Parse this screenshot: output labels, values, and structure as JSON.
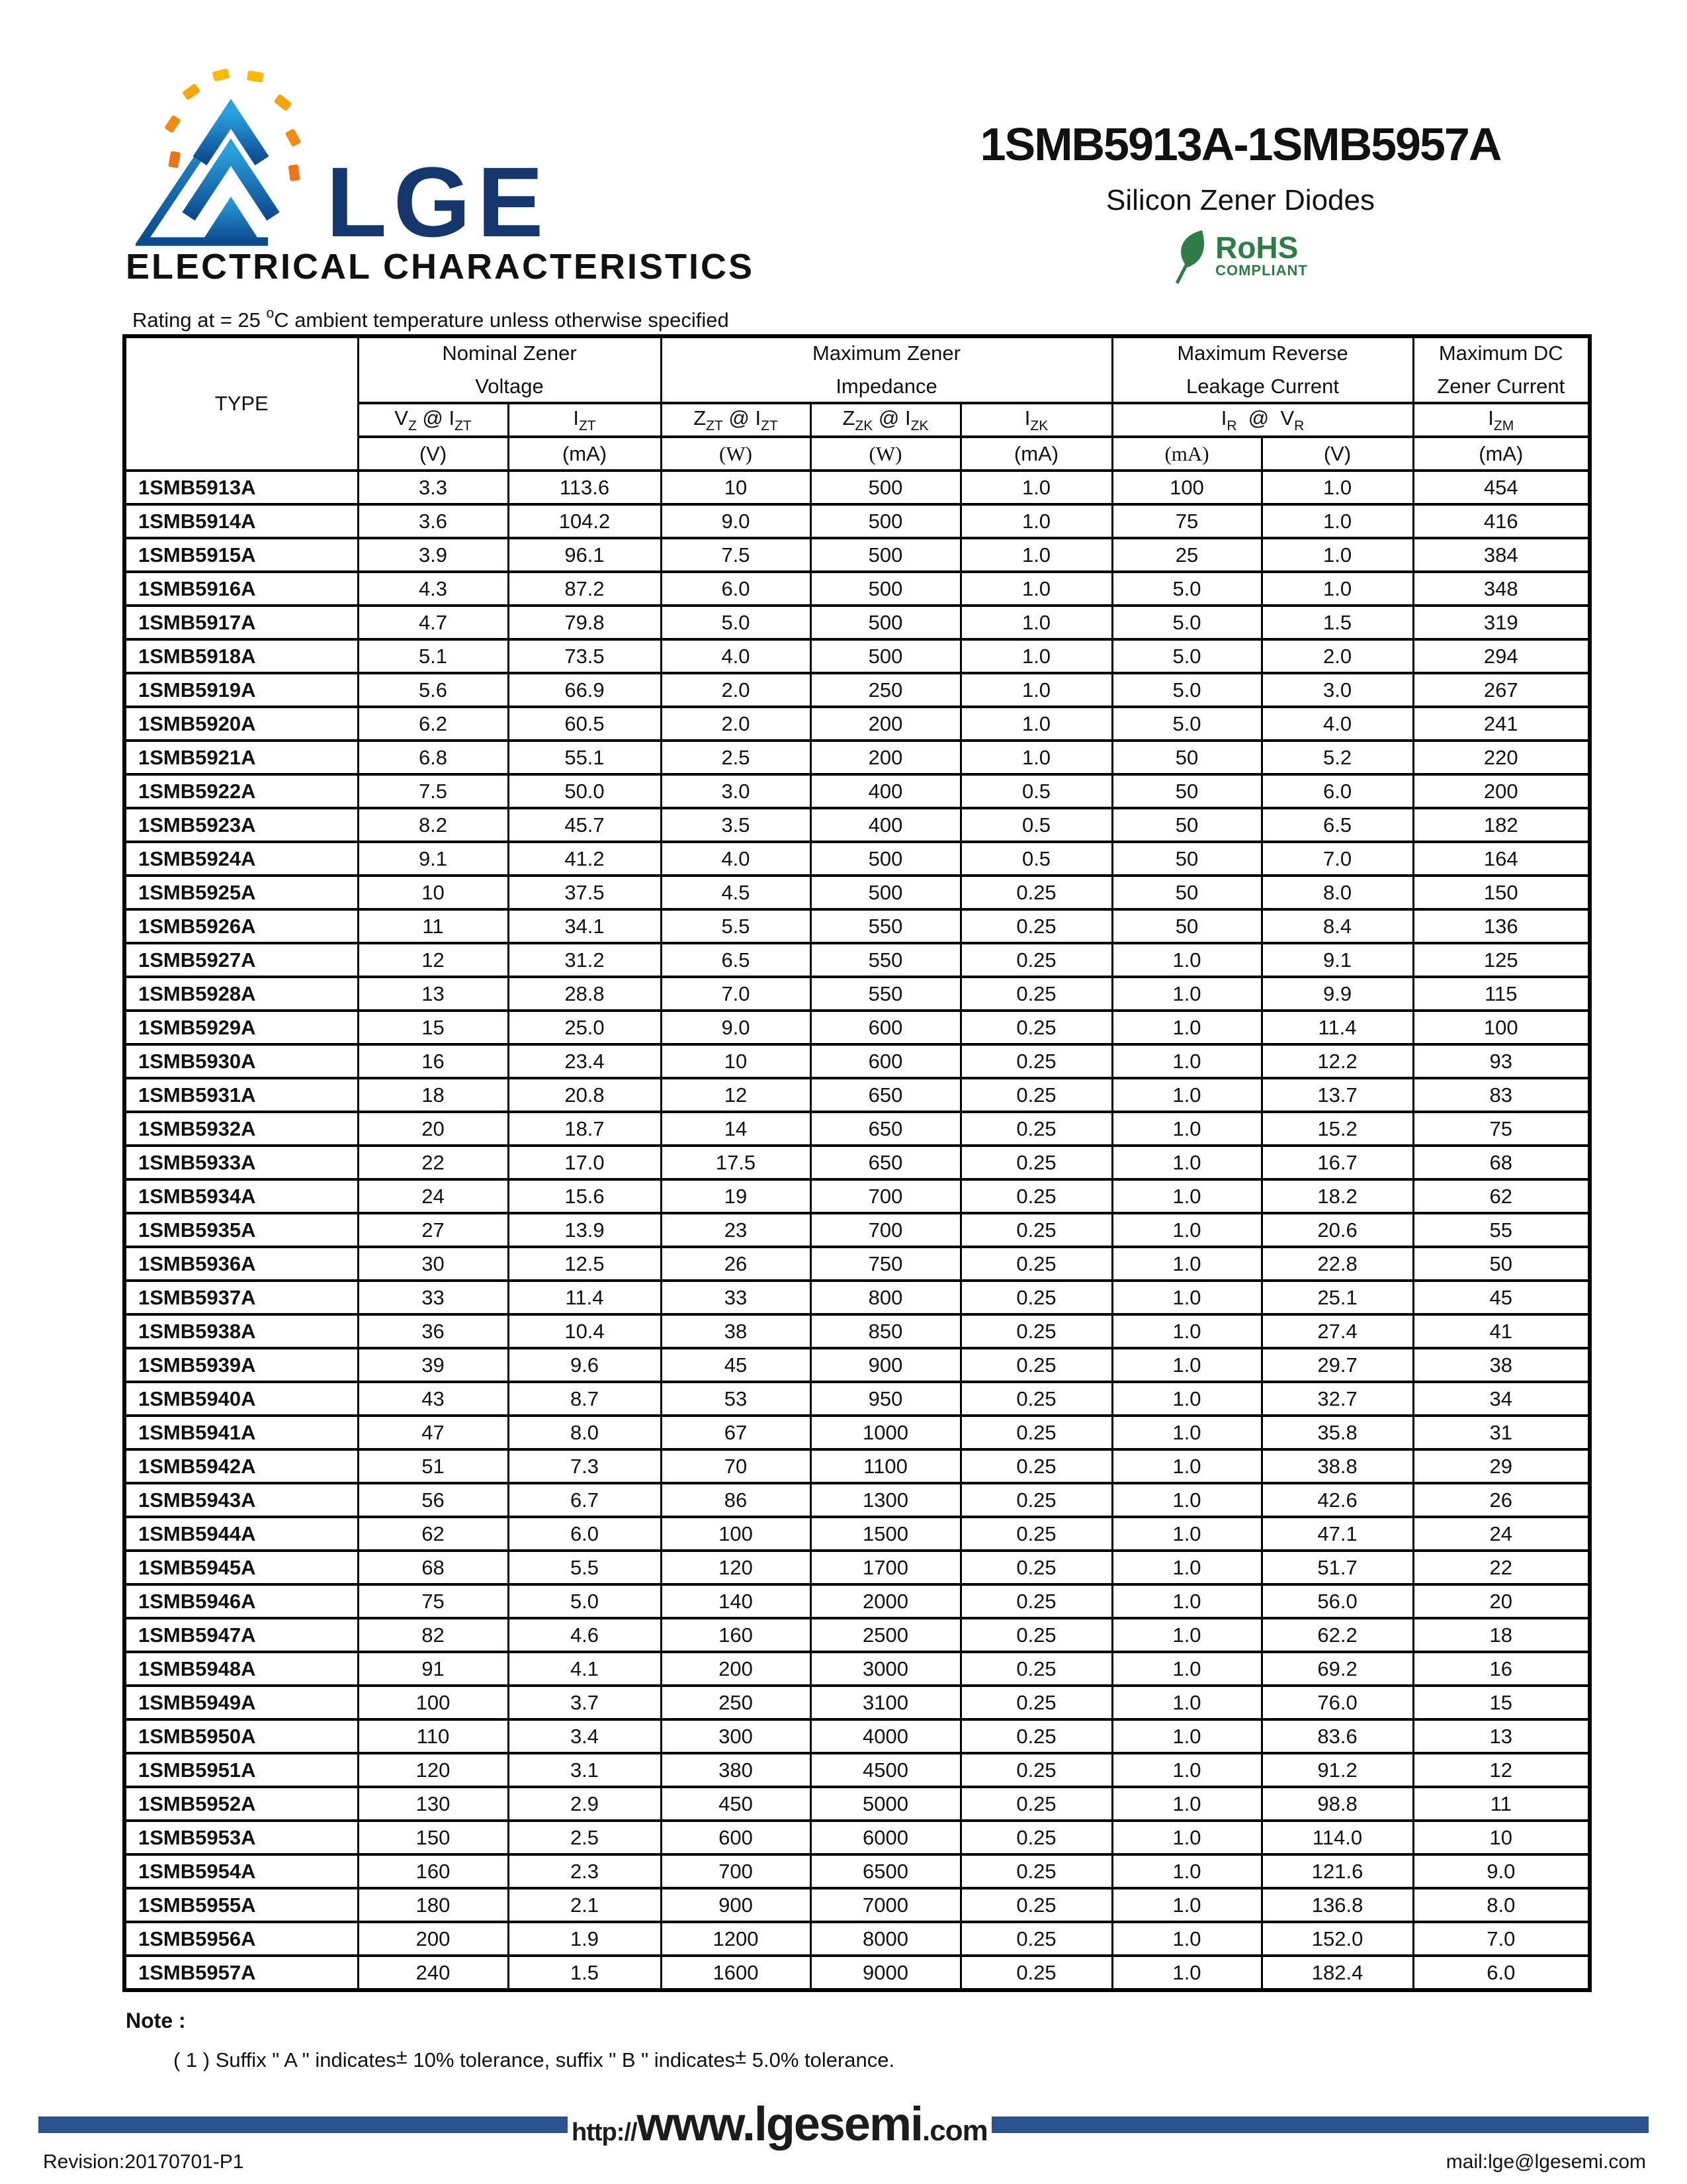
{
  "page": {
    "brand": "LGE",
    "title": "1SMB5913A-1SMB5957A",
    "subtitle": "Silicon Zener Diodes",
    "rohs": {
      "line1": "RoHS",
      "line2": "COMPLIANT"
    },
    "section_title": "ELECTRICAL CHARACTERISTICS",
    "rating": {
      "prefix": "Rating at  = 25 ",
      "sup": "o",
      "suffix": "C ambient temperature unless otherwise specified"
    },
    "note_label": "Note :",
    "note_parts": {
      "p1": "( 1 )   Suffix \" A \" indicates",
      "pm1": "±",
      "p2": " 10% tolerance,  suffix \" B \" indicates",
      "pm2": "±",
      "p3": " 5.0% tolerance."
    },
    "footer": {
      "url_prefix": "http://",
      "url_main": "www.lgesemi",
      "url_suffix": ".com",
      "revision": "Revision:20170701-P1",
      "mail": "mail:lge@lgesemi.com"
    },
    "colors": {
      "bar_blue": "#2b5591",
      "brand_navy": "#16366e",
      "rohs_green": "#2e7d46",
      "logo_blue_light": "#2aa0de",
      "logo_blue_dark": "#0b4a8e",
      "logo_orange": "#ee7418",
      "logo_yellow": "#fcba06"
    }
  },
  "table": {
    "type_header": "TYPE",
    "groups": [
      {
        "line1": "Nominal Zener",
        "line2": "Voltage"
      },
      {
        "line1": "Maximum Zener",
        "line2": "Impedance"
      },
      {
        "line1": "Maximum Reverse",
        "line2": "Leakage Current"
      },
      {
        "line1": "Maximum DC",
        "line2": "Zener Current"
      }
    ],
    "symbols": {
      "vz": [
        "V",
        "Z",
        " @ I",
        "ZT"
      ],
      "izt": [
        "I",
        "ZT"
      ],
      "zzt": [
        "Z",
        "ZT",
        " @ I",
        "ZT"
      ],
      "zzk": [
        "Z",
        "ZK",
        " @ I",
        "ZK"
      ],
      "izk": [
        "I",
        "ZK"
      ],
      "irvr": [
        "I",
        "R",
        "  @  V",
        "R"
      ],
      "izm": [
        "I",
        "ZM"
      ]
    },
    "units": [
      "(V)",
      "(mA)",
      "(W)",
      "(W)",
      "(mA)",
      "(mA)",
      "(V)",
      "(mA)"
    ],
    "rows": [
      [
        "1SMB5913A",
        "3.3",
        "113.6",
        "10",
        "500",
        "1.0",
        "100",
        "1.0",
        "454"
      ],
      [
        "1SMB5914A",
        "3.6",
        "104.2",
        "9.0",
        "500",
        "1.0",
        "75",
        "1.0",
        "416"
      ],
      [
        "1SMB5915A",
        "3.9",
        "96.1",
        "7.5",
        "500",
        "1.0",
        "25",
        "1.0",
        "384"
      ],
      [
        "1SMB5916A",
        "4.3",
        "87.2",
        "6.0",
        "500",
        "1.0",
        "5.0",
        "1.0",
        "348"
      ],
      [
        "1SMB5917A",
        "4.7",
        "79.8",
        "5.0",
        "500",
        "1.0",
        "5.0",
        "1.5",
        "319"
      ],
      [
        "1SMB5918A",
        "5.1",
        "73.5",
        "4.0",
        "500",
        "1.0",
        "5.0",
        "2.0",
        "294"
      ],
      [
        "1SMB5919A",
        "5.6",
        "66.9",
        "2.0",
        "250",
        "1.0",
        "5.0",
        "3.0",
        "267"
      ],
      [
        "1SMB5920A",
        "6.2",
        "60.5",
        "2.0",
        "200",
        "1.0",
        "5.0",
        "4.0",
        "241"
      ],
      [
        "1SMB5921A",
        "6.8",
        "55.1",
        "2.5",
        "200",
        "1.0",
        "50",
        "5.2",
        "220"
      ],
      [
        "1SMB5922A",
        "7.5",
        "50.0",
        "3.0",
        "400",
        "0.5",
        "50",
        "6.0",
        "200"
      ],
      [
        "1SMB5923A",
        "8.2",
        "45.7",
        "3.5",
        "400",
        "0.5",
        "50",
        "6.5",
        "182"
      ],
      [
        "1SMB5924A",
        "9.1",
        "41.2",
        "4.0",
        "500",
        "0.5",
        "50",
        "7.0",
        "164"
      ],
      [
        "1SMB5925A",
        "10",
        "37.5",
        "4.5",
        "500",
        "0.25",
        "50",
        "8.0",
        "150"
      ],
      [
        "1SMB5926A",
        "11",
        "34.1",
        "5.5",
        "550",
        "0.25",
        "50",
        "8.4",
        "136"
      ],
      [
        "1SMB5927A",
        "12",
        "31.2",
        "6.5",
        "550",
        "0.25",
        "1.0",
        "9.1",
        "125"
      ],
      [
        "1SMB5928A",
        "13",
        "28.8",
        "7.0",
        "550",
        "0.25",
        "1.0",
        "9.9",
        "115"
      ],
      [
        "1SMB5929A",
        "15",
        "25.0",
        "9.0",
        "600",
        "0.25",
        "1.0",
        "11.4",
        "100"
      ],
      [
        "1SMB5930A",
        "16",
        "23.4",
        "10",
        "600",
        "0.25",
        "1.0",
        "12.2",
        "93"
      ],
      [
        "1SMB5931A",
        "18",
        "20.8",
        "12",
        "650",
        "0.25",
        "1.0",
        "13.7",
        "83"
      ],
      [
        "1SMB5932A",
        "20",
        "18.7",
        "14",
        "650",
        "0.25",
        "1.0",
        "15.2",
        "75"
      ],
      [
        "1SMB5933A",
        "22",
        "17.0",
        "17.5",
        "650",
        "0.25",
        "1.0",
        "16.7",
        "68"
      ],
      [
        "1SMB5934A",
        "24",
        "15.6",
        "19",
        "700",
        "0.25",
        "1.0",
        "18.2",
        "62"
      ],
      [
        "1SMB5935A",
        "27",
        "13.9",
        "23",
        "700",
        "0.25",
        "1.0",
        "20.6",
        "55"
      ],
      [
        "1SMB5936A",
        "30",
        "12.5",
        "26",
        "750",
        "0.25",
        "1.0",
        "22.8",
        "50"
      ],
      [
        "1SMB5937A",
        "33",
        "11.4",
        "33",
        "800",
        "0.25",
        "1.0",
        "25.1",
        "45"
      ],
      [
        "1SMB5938A",
        "36",
        "10.4",
        "38",
        "850",
        "0.25",
        "1.0",
        "27.4",
        "41"
      ],
      [
        "1SMB5939A",
        "39",
        "9.6",
        "45",
        "900",
        "0.25",
        "1.0",
        "29.7",
        "38"
      ],
      [
        "1SMB5940A",
        "43",
        "8.7",
        "53",
        "950",
        "0.25",
        "1.0",
        "32.7",
        "34"
      ],
      [
        "1SMB5941A",
        "47",
        "8.0",
        "67",
        "1000",
        "0.25",
        "1.0",
        "35.8",
        "31"
      ],
      [
        "1SMB5942A",
        "51",
        "7.3",
        "70",
        "1100",
        "0.25",
        "1.0",
        "38.8",
        "29"
      ],
      [
        "1SMB5943A",
        "56",
        "6.7",
        "86",
        "1300",
        "0.25",
        "1.0",
        "42.6",
        "26"
      ],
      [
        "1SMB5944A",
        "62",
        "6.0",
        "100",
        "1500",
        "0.25",
        "1.0",
        "47.1",
        "24"
      ],
      [
        "1SMB5945A",
        "68",
        "5.5",
        "120",
        "1700",
        "0.25",
        "1.0",
        "51.7",
        "22"
      ],
      [
        "1SMB5946A",
        "75",
        "5.0",
        "140",
        "2000",
        "0.25",
        "1.0",
        "56.0",
        "20"
      ],
      [
        "1SMB5947A",
        "82",
        "4.6",
        "160",
        "2500",
        "0.25",
        "1.0",
        "62.2",
        "18"
      ],
      [
        "1SMB5948A",
        "91",
        "4.1",
        "200",
        "3000",
        "0.25",
        "1.0",
        "69.2",
        "16"
      ],
      [
        "1SMB5949A",
        "100",
        "3.7",
        "250",
        "3100",
        "0.25",
        "1.0",
        "76.0",
        "15"
      ],
      [
        "1SMB5950A",
        "110",
        "3.4",
        "300",
        "4000",
        "0.25",
        "1.0",
        "83.6",
        "13"
      ],
      [
        "1SMB5951A",
        "120",
        "3.1",
        "380",
        "4500",
        "0.25",
        "1.0",
        "91.2",
        "12"
      ],
      [
        "1SMB5952A",
        "130",
        "2.9",
        "450",
        "5000",
        "0.25",
        "1.0",
        "98.8",
        "11"
      ],
      [
        "1SMB5953A",
        "150",
        "2.5",
        "600",
        "6000",
        "0.25",
        "1.0",
        "114.0",
        "10"
      ],
      [
        "1SMB5954A",
        "160",
        "2.3",
        "700",
        "6500",
        "0.25",
        "1.0",
        "121.6",
        "9.0"
      ],
      [
        "1SMB5955A",
        "180",
        "2.1",
        "900",
        "7000",
        "0.25",
        "1.0",
        "136.8",
        "8.0"
      ],
      [
        "1SMB5956A",
        "200",
        "1.9",
        "1200",
        "8000",
        "0.25",
        "1.0",
        "152.0",
        "7.0"
      ],
      [
        "1SMB5957A",
        "240",
        "1.5",
        "1600",
        "9000",
        "0.25",
        "1.0",
        "182.4",
        "6.0"
      ]
    ]
  }
}
